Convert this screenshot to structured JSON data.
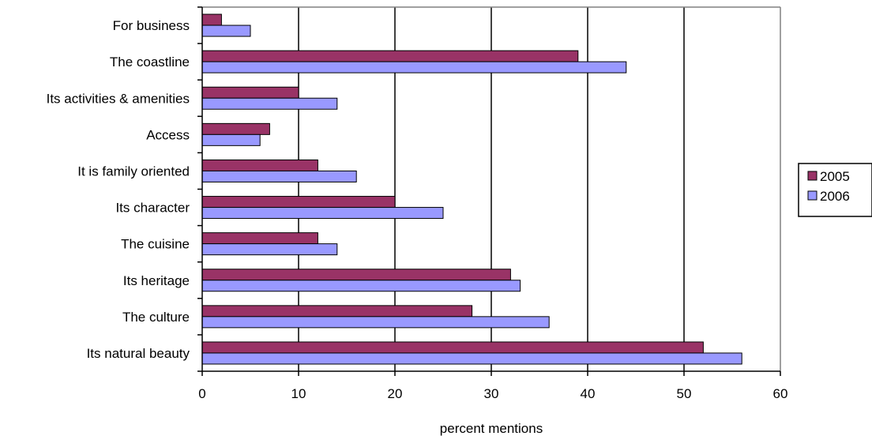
{
  "chart_data": {
    "type": "bar",
    "orientation": "horizontal",
    "title": "",
    "xlabel": "percent mentions",
    "ylabel": "",
    "xlim": [
      0,
      60
    ],
    "xticks": [
      0,
      10,
      20,
      30,
      40,
      50,
      60
    ],
    "grid": "vertical major gridlines",
    "legend_position": "right",
    "categories": [
      "For business",
      "The coastline",
      "Its activities & amenities",
      "Access",
      "It is family oriented",
      "Its character",
      "The cuisine",
      "Its heritage",
      "The culture",
      "Its natural beauty"
    ],
    "series": [
      {
        "name": "2005",
        "color": "#993366",
        "values": [
          2,
          39,
          10,
          7,
          12,
          20,
          12,
          32,
          28,
          52
        ]
      },
      {
        "name": "2006",
        "color": "#9999FF",
        "values": [
          5,
          44,
          14,
          6,
          16,
          25,
          14,
          33,
          36,
          56
        ]
      }
    ]
  }
}
